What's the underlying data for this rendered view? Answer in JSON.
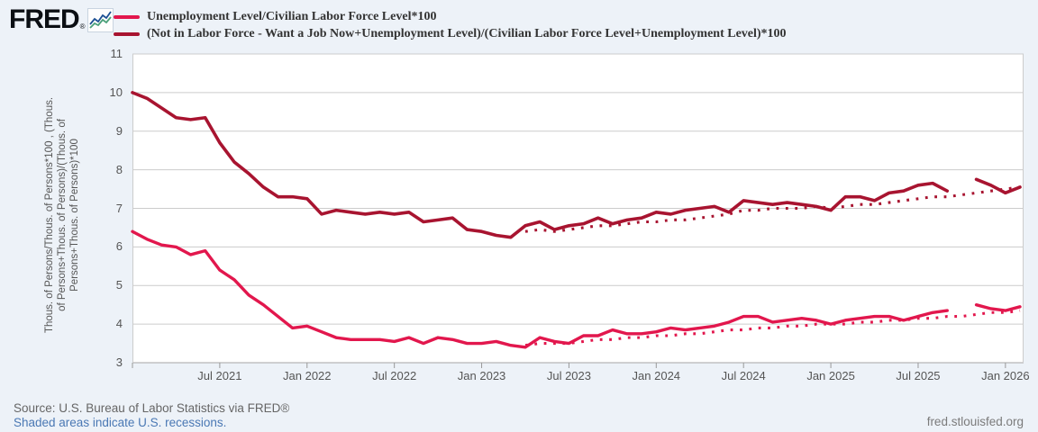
{
  "header": {
    "logo_text": "FRED",
    "logo_reg": "®"
  },
  "footer": {
    "source_line": "Source: U.S. Bureau of Labor Statistics via FRED®",
    "recessions_link": "Shaded areas indicate U.S. recessions.",
    "site_link": "fred.stlouisfed.org"
  },
  "y_axis_title": "Thous. of Persons/Thous. of Persons*100 , (Thous.\nof Persons+Thous. of Persons)/(Thous. of\nPersons+Thous. of Persons)*100",
  "chart_data": {
    "type": "line",
    "x_start": "2021-01",
    "x_end": "2026-02",
    "x_step": "month",
    "months_count": 62,
    "ylim": [
      3,
      11
    ],
    "yticks": [
      11,
      10,
      9,
      8,
      7,
      6,
      5,
      4,
      3
    ],
    "grid": "horizontal",
    "legend_position": "top",
    "xticks": [
      {
        "i": 0,
        "label": ""
      },
      {
        "i": 6,
        "label": "Jul 2021"
      },
      {
        "i": 12,
        "label": "Jan 2022"
      },
      {
        "i": 18,
        "label": "Jul 2022"
      },
      {
        "i": 24,
        "label": "Jan 2023"
      },
      {
        "i": 30,
        "label": "Jul 2023"
      },
      {
        "i": 36,
        "label": "Jan 2024"
      },
      {
        "i": 42,
        "label": "Jul 2024"
      },
      {
        "i": 48,
        "label": "Jan 2025"
      },
      {
        "i": 54,
        "label": "Jul 2025"
      },
      {
        "i": 60,
        "label": "Jan 2026"
      }
    ],
    "series": [
      {
        "name": "Unemployment Level/Civilian Labor Force Level*100",
        "color": "#e2174d",
        "stroke_width": 3.4,
        "solid": [
          6.4,
          6.2,
          6.05,
          6.0,
          5.8,
          5.9,
          5.4,
          5.15,
          4.75,
          4.5,
          4.2,
          3.9,
          3.95,
          3.8,
          3.65,
          3.6,
          3.6,
          3.6,
          3.55,
          3.65,
          3.5,
          3.65,
          3.6,
          3.5,
          3.5,
          3.55,
          3.45,
          3.4,
          3.65,
          3.55,
          3.5,
          3.7,
          3.7,
          3.85,
          3.75,
          3.75,
          3.8,
          3.9,
          3.85,
          3.9,
          3.95,
          4.05,
          4.2,
          4.2,
          4.05,
          4.1,
          4.15,
          4.1,
          4.0,
          4.1,
          4.15,
          4.2,
          4.2,
          4.1,
          4.2,
          4.3,
          4.35,
          null,
          4.5,
          4.4,
          4.35,
          4.45
        ],
        "dotted_start_i": 27,
        "dotted": [
          3.45,
          3.5,
          3.5,
          3.5,
          3.55,
          3.6,
          3.6,
          3.65,
          3.65,
          3.7,
          3.7,
          3.75,
          3.75,
          3.8,
          3.85,
          3.85,
          3.9,
          3.9,
          3.95,
          3.95,
          4.0,
          4.0,
          4.0,
          4.05,
          4.05,
          4.1,
          4.1,
          4.15,
          4.15,
          4.2,
          4.2,
          4.25,
          4.3,
          4.3,
          4.35
        ]
      },
      {
        "name": "(Not in Labor Force - Want a Job Now+Unemployment Level)/(Civilian Labor Force Level+Unemployment Level)*100",
        "color": "#a81430",
        "stroke_width": 3.6,
        "solid": [
          10.0,
          9.85,
          9.6,
          9.35,
          9.3,
          9.35,
          8.7,
          8.2,
          7.9,
          7.55,
          7.3,
          7.3,
          7.25,
          6.85,
          6.95,
          6.9,
          6.85,
          6.9,
          6.85,
          6.9,
          6.65,
          6.7,
          6.75,
          6.45,
          6.4,
          6.3,
          6.25,
          6.55,
          6.65,
          6.45,
          6.55,
          6.6,
          6.75,
          6.6,
          6.7,
          6.75,
          6.9,
          6.85,
          6.95,
          7.0,
          7.05,
          6.9,
          7.2,
          7.15,
          7.1,
          7.15,
          7.1,
          7.05,
          6.95,
          7.3,
          7.3,
          7.2,
          7.4,
          7.45,
          7.6,
          7.65,
          7.45,
          null,
          7.75,
          7.6,
          7.4,
          7.55
        ],
        "dotted_start_i": 27,
        "dotted": [
          6.4,
          6.45,
          6.4,
          6.45,
          6.5,
          6.55,
          6.55,
          6.6,
          6.65,
          6.65,
          6.7,
          6.7,
          6.75,
          6.8,
          6.85,
          6.95,
          6.95,
          7.0,
          7.0,
          7.0,
          7.05,
          7.0,
          7.05,
          7.1,
          7.1,
          7.15,
          7.2,
          7.25,
          7.3,
          7.3,
          7.35,
          7.4,
          7.45,
          7.5,
          7.55
        ]
      }
    ]
  }
}
